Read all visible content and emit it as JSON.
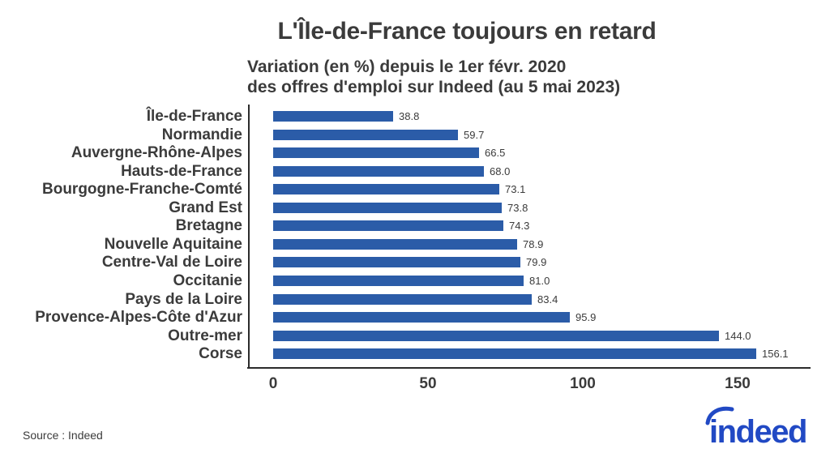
{
  "chart_data": {
    "type": "bar",
    "orientation": "horizontal",
    "title": "L'Île-de-France toujours en retard",
    "subtitle_line1": "Variation (en %) depuis le 1er févr. 2020",
    "subtitle_line2": "des offres d'emploi sur Indeed (au 5 mai 2023)",
    "categories": [
      "Île-de-France",
      "Normandie",
      "Auvergne-Rhône-Alpes",
      "Hauts-de-France",
      "Bourgogne-Franche-Comté",
      "Grand Est",
      "Bretagne",
      "Nouvelle Aquitaine",
      "Centre-Val de Loire",
      "Occitanie",
      "Pays de la Loire",
      "Provence-Alpes-Côte d'Azur",
      "Outre-mer",
      "Corse"
    ],
    "values": [
      38.8,
      59.7,
      66.5,
      68.0,
      73.1,
      73.8,
      74.3,
      78.9,
      79.9,
      81.0,
      83.4,
      95.9,
      144.0,
      156.1
    ],
    "xlabel": "",
    "ylabel": "",
    "x_ticks": [
      0,
      50,
      100,
      150
    ],
    "xlim": [
      0,
      170
    ],
    "grid": false,
    "legend": "none",
    "bar_color": "#2b5ca8",
    "value_label_decimals": 1
  },
  "footer": {
    "source": "Source : Indeed",
    "logo_text": "indeed",
    "logo_color": "#2149c4"
  },
  "colors": {
    "text": "#3b3b3b",
    "axis": "#2b2b2b",
    "background": "#ffffff"
  }
}
